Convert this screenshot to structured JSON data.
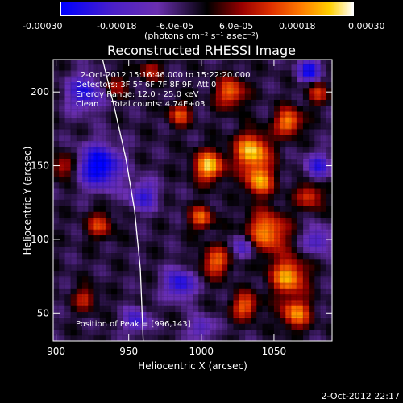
{
  "chart_data": {
    "type": "heatmap",
    "title": "Reconstructed RHESSI Image",
    "xlabel": "Heliocentric X (arcsec)",
    "ylabel": "Heliocentric Y (arcsec)",
    "xlim": [
      898,
      1090
    ],
    "ylim": [
      31,
      222
    ],
    "x_ticks": [
      900,
      950,
      1000,
      1050
    ],
    "y_ticks": [
      50,
      100,
      150,
      200
    ],
    "colorbar": {
      "range": [
        -0.0003,
        0.0003
      ],
      "tick_labels": [
        "-0.00030",
        "-0.00018",
        "-6.0e-05",
        "6.0e-05",
        "0.00018",
        "0.00030"
      ],
      "unit_label": "(photons cm⁻² s⁻¹ asec⁻²)",
      "colors": [
        "#0000ff",
        "#6a2fb0",
        "#000000",
        "#b00000",
        "#ff5500",
        "#ffd000",
        "#ffffff"
      ]
    },
    "annotations": [
      "2-Oct-2012 15:16:46.000 to 15:22:20.000",
      "Detectors: 3F 5F 6F 7F 8F 9F, Att 0",
      "Energy Range: 12.0 - 25.0 keV",
      "Clean     Total counts: 4.74E+03"
    ],
    "peak_label": "Position of Peak = [996,143]",
    "peak": [
      996,
      143
    ],
    "limb_curve": [
      [
        932,
        222
      ],
      [
        940,
        190
      ],
      [
        948,
        155
      ],
      [
        954,
        120
      ],
      [
        958,
        80
      ],
      [
        960,
        31
      ]
    ],
    "blobs": [
      {
        "x": 1005,
        "y": 150,
        "v": 1.0,
        "r": 10
      },
      {
        "x": 1035,
        "y": 160,
        "v": 1.0,
        "r": 12
      },
      {
        "x": 1040,
        "y": 140,
        "v": 0.85,
        "r": 10
      },
      {
        "x": 1060,
        "y": 180,
        "v": 0.85,
        "r": 9
      },
      {
        "x": 1020,
        "y": 200,
        "v": 0.75,
        "r": 10
      },
      {
        "x": 1045,
        "y": 105,
        "v": 0.85,
        "r": 14
      },
      {
        "x": 1060,
        "y": 75,
        "v": 0.9,
        "r": 12
      },
      {
        "x": 1065,
        "y": 50,
        "v": 0.8,
        "r": 10
      },
      {
        "x": 1010,
        "y": 85,
        "v": 0.7,
        "r": 10
      },
      {
        "x": 1000,
        "y": 115,
        "v": 0.7,
        "r": 8
      },
      {
        "x": 985,
        "y": 185,
        "v": 0.6,
        "r": 8
      },
      {
        "x": 965,
        "y": 215,
        "v": 0.5,
        "r": 7
      },
      {
        "x": 930,
        "y": 110,
        "v": 0.55,
        "r": 9
      },
      {
        "x": 920,
        "y": 60,
        "v": 0.5,
        "r": 8
      },
      {
        "x": 905,
        "y": 150,
        "v": 0.55,
        "r": 8
      },
      {
        "x": 1075,
        "y": 130,
        "v": 0.6,
        "r": 9
      },
      {
        "x": 1080,
        "y": 200,
        "v": 0.5,
        "r": 8
      },
      {
        "x": 1030,
        "y": 55,
        "v": 0.7,
        "r": 9
      },
      {
        "x": 940,
        "y": 205,
        "v": 0.45,
        "r": 8
      },
      {
        "x": 930,
        "y": 150,
        "v": -1.0,
        "r": 14
      },
      {
        "x": 920,
        "y": 200,
        "v": -0.7,
        "r": 12
      },
      {
        "x": 985,
        "y": 70,
        "v": -0.75,
        "r": 10
      },
      {
        "x": 1030,
        "y": 95,
        "v": -0.55,
        "r": 8
      },
      {
        "x": 1080,
        "y": 150,
        "v": -0.6,
        "r": 9
      },
      {
        "x": 1080,
        "y": 100,
        "v": -0.55,
        "r": 9
      },
      {
        "x": 1075,
        "y": 215,
        "v": -0.8,
        "r": 8
      },
      {
        "x": 960,
        "y": 130,
        "v": -0.6,
        "r": 10
      },
      {
        "x": 1000,
        "y": 40,
        "v": -0.5,
        "r": 8
      },
      {
        "x": 955,
        "y": 45,
        "v": -0.6,
        "r": 8
      }
    ]
  },
  "footer": {
    "timestamp": "2-Oct-2012 22:17"
  }
}
